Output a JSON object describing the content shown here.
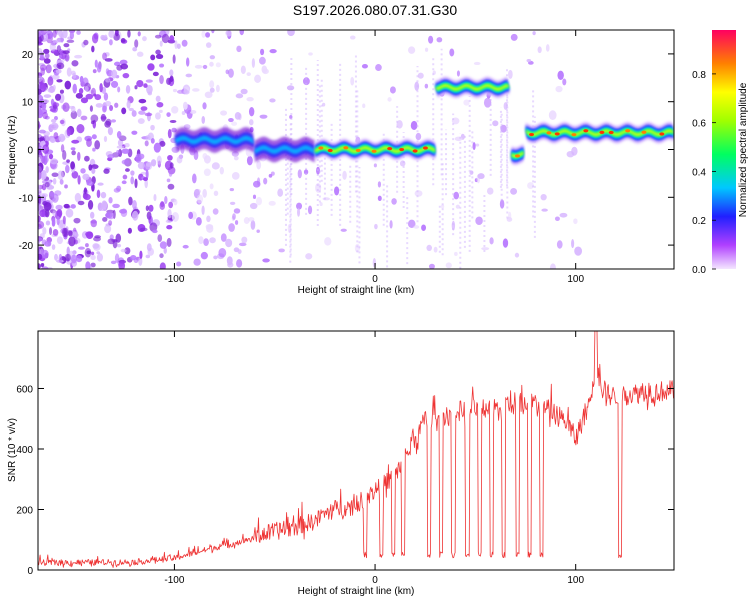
{
  "title": "S197.2026.080.07.31.G30",
  "chart_data": [
    {
      "type": "heatmap",
      "name": "spectrogram",
      "xlabel": "Height of straight line (km)",
      "ylabel": "Frequency (Hz)",
      "xlim": [
        -168,
        149
      ],
      "ylim": [
        -25,
        25
      ],
      "xticks": [
        -100,
        0,
        100
      ],
      "yticks": [
        -20,
        -10,
        0,
        10,
        20
      ],
      "colorbar": {
        "label": "Normalized spectral amplitude",
        "range": [
          0,
          0.98
        ],
        "ticks": [
          0.0,
          0.2,
          0.4,
          0.6,
          0.8
        ]
      },
      "ridges": [
        {
          "x_start": -100,
          "x_end": -60,
          "freq": 2,
          "amplitude": 0.3
        },
        {
          "x_start": -60,
          "x_end": -30,
          "freq": 0,
          "amplitude": 0.4
        },
        {
          "x_start": -30,
          "x_end": 30,
          "freq": 0,
          "amplitude": 0.7
        },
        {
          "x_start": 30,
          "x_end": 67,
          "freq": 13,
          "amplitude": 0.55
        },
        {
          "x_start": 68,
          "x_end": 74,
          "freq": -1,
          "amplitude": 0.8
        },
        {
          "x_start": 75,
          "x_end": 149,
          "freq": 3.5,
          "amplitude": 0.7
        }
      ]
    },
    {
      "type": "line",
      "name": "snr",
      "xlabel": "Height of straight line (km)",
      "ylabel": "SNR (10 * v/v)",
      "xlim": [
        -168,
        149
      ],
      "ylim": [
        0,
        790
      ],
      "xticks": [
        -100,
        0,
        100
      ],
      "yticks": [
        0,
        200,
        400,
        600
      ],
      "color": "#ee3333",
      "trend_x": [
        -168,
        -120,
        -100,
        -80,
        -60,
        -40,
        -30,
        -20,
        -10,
        0,
        10,
        20,
        25,
        40,
        60,
        80,
        95,
        100,
        110,
        118,
        130,
        149
      ],
      "trend_y": [
        20,
        22,
        35,
        70,
        100,
        130,
        150,
        190,
        200,
        250,
        300,
        420,
        480,
        510,
        530,
        540,
        480,
        420,
        600,
        560,
        570,
        580
      ],
      "dips_x": [
        -5,
        3,
        9,
        14,
        27,
        33,
        39,
        46,
        52,
        58,
        64,
        71,
        77,
        83,
        122
      ],
      "dips_y": 40,
      "peak": {
        "x": 110,
        "y": 790
      }
    }
  ]
}
